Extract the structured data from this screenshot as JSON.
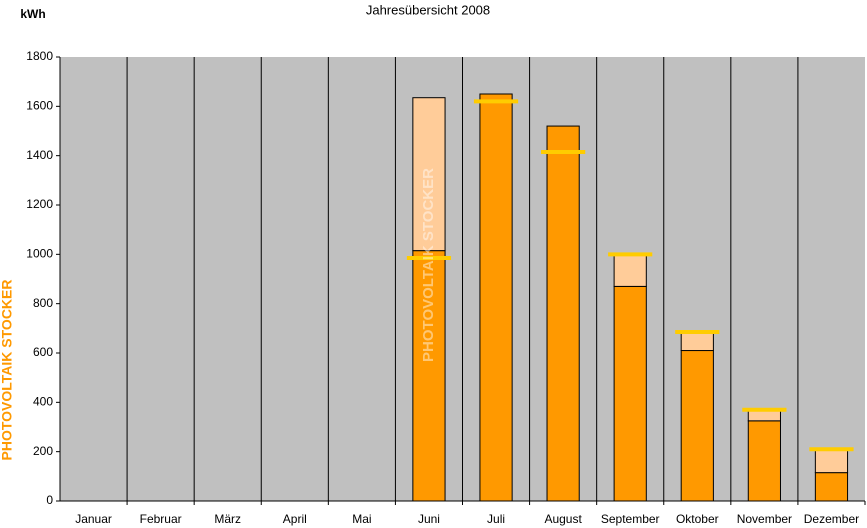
{
  "chart_data": {
    "type": "bar",
    "stacked": true,
    "title": "Jahresübersicht 2008",
    "y_label": "kWh",
    "side_label": "PHOTOVOLTAIK STOCKER",
    "watermark": "PHOTOVOLTAIK STOCKER",
    "categories": [
      "Januar",
      "Februar",
      "März",
      "April",
      "Mai",
      "Juni",
      "Juli",
      "August",
      "September",
      "Oktober",
      "November",
      "Dezember"
    ],
    "series": [
      {
        "color": "#ff9900",
        "values": [
          null,
          null,
          null,
          null,
          null,
          1015,
          1650,
          1520,
          870,
          610,
          325,
          115
        ]
      },
      {
        "color": "#ffcc99",
        "values": [
          null,
          null,
          null,
          null,
          null,
          620,
          0,
          0,
          130,
          75,
          45,
          90
        ]
      }
    ],
    "markers": {
      "color": "#ffcc00",
      "values": [
        null,
        null,
        null,
        null,
        null,
        985,
        1620,
        1415,
        1000,
        685,
        370,
        210
      ]
    },
    "ylim": [
      0,
      1800
    ],
    "yticks": [
      0,
      200,
      400,
      600,
      800,
      1000,
      1200,
      1400,
      1600,
      1800
    ],
    "plot_color": "#c0c0c0"
  }
}
